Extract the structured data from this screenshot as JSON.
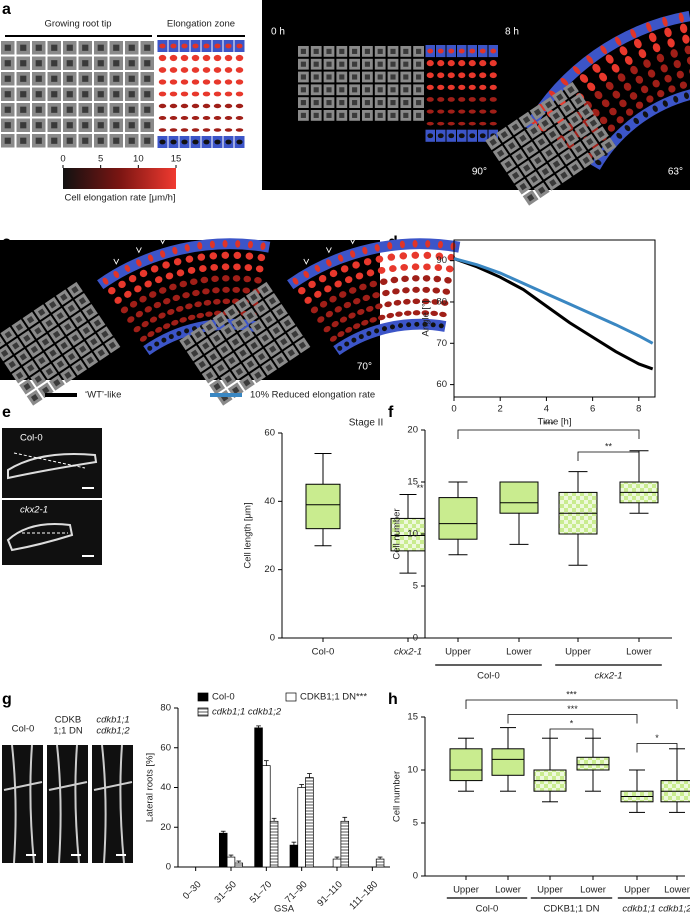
{
  "panel_labels": [
    "a",
    "b",
    "c",
    "d",
    "e",
    "f",
    "g",
    "h"
  ],
  "panel_a": {
    "headers": [
      "Growing root tip",
      "Elongation zone"
    ],
    "colorbar": {
      "lim": [
        0,
        15
      ],
      "ticks": [
        0,
        5,
        10,
        15
      ],
      "label": "Cell elongation rate [μm/h]"
    }
  },
  "panel_b": {
    "times": [
      "0 h",
      "8 h"
    ],
    "angles": [
      "90°",
      "63°"
    ]
  },
  "panel_c": {
    "angle": "70°"
  },
  "panel_e": {
    "images": [
      "Col-0",
      "ckx2-1"
    ]
  },
  "panel_g": {
    "images": [
      [
        "Col-0"
      ],
      [
        "CDKB",
        "1;1 DN"
      ],
      [
        "cdkb1;1",
        "cdkb1;2"
      ]
    ]
  },
  "chart_data": [
    {
      "type": "line",
      "xlabel": "Time [h]",
      "ylabel": "Angle [°]",
      "x": [
        0,
        1,
        2,
        3,
        4,
        5,
        6,
        7,
        8,
        8.6
      ],
      "series": [
        {
          "name": "‘WT’-like",
          "color": "#000000",
          "values": [
            90.5,
            88.5,
            86,
            83,
            79,
            75,
            71.5,
            68,
            65,
            63.8
          ]
        },
        {
          "name": "10% Reduced elongation rate",
          "color": "#3a87c2",
          "values": [
            90.5,
            89,
            87,
            84.5,
            82,
            79.5,
            77,
            74.5,
            71.8,
            70
          ]
        }
      ],
      "xlim": [
        0,
        8.7
      ],
      "ylim": [
        57,
        95
      ],
      "xticks": [
        0,
        2,
        4,
        6,
        8
      ],
      "yticks": [
        60,
        70,
        80,
        90
      ]
    },
    {
      "type": "box",
      "title": "Stage II",
      "ylabel": "Cell length [μm]",
      "categories": [
        "Col-0",
        "ckx2-1"
      ],
      "fills": [
        "solid",
        "checker"
      ],
      "color": "#c9ec8f",
      "boxes": [
        {
          "min": 27,
          "q1": 32,
          "median": 39,
          "q3": 45,
          "max": 54
        },
        {
          "min": 19,
          "q1": 25.5,
          "median": 30,
          "q3": 35,
          "max": 42
        }
      ],
      "annotations": [
        {
          "label": "**",
          "at": 1
        }
      ],
      "ylim": [
        0,
        60
      ],
      "yticks": [
        0,
        20,
        40,
        60
      ]
    },
    {
      "type": "box",
      "ylabel": "Cell number",
      "categories": [
        "Upper",
        "Lower",
        "Upper",
        "Lower"
      ],
      "group_labels": [
        "Col-0",
        "ckx2-1"
      ],
      "fills": [
        "solid",
        "solid",
        "checker",
        "checker"
      ],
      "color": "#c9ec8f",
      "boxes": [
        {
          "min": 8,
          "q1": 9.5,
          "median": 11,
          "q3": 13.5,
          "max": 15
        },
        {
          "min": 9,
          "q1": 12,
          "median": 13,
          "q3": 15,
          "max": 15
        },
        {
          "min": 7,
          "q1": 10,
          "median": 12,
          "q3": 14,
          "max": 16
        },
        {
          "min": 12,
          "q1": 13,
          "median": 14,
          "q3": 15,
          "max": 18
        }
      ],
      "significance": [
        {
          "label": "***",
          "between": [
            0,
            3
          ]
        },
        {
          "label": "**",
          "between": [
            2,
            3
          ]
        }
      ],
      "ylim": [
        0,
        20
      ],
      "yticks": [
        0,
        5,
        10,
        15,
        20
      ]
    },
    {
      "type": "bar",
      "xlabel": "GSA",
      "ylabel": "Lateral roots [%]",
      "categories": [
        "0–30",
        "31–50",
        "51–70",
        "71–90",
        "91–110",
        "111–180"
      ],
      "series": [
        {
          "name": "Col-0",
          "color": "#000000",
          "pattern": "solid",
          "values": [
            0,
            17,
            70,
            11,
            0,
            0
          ],
          "errors": [
            0,
            1,
            1,
            1.5,
            0,
            0
          ]
        },
        {
          "name": "CDKB1;1 DN***",
          "color": "#ffffff",
          "pattern": "solid",
          "values": [
            0,
            5,
            51,
            40,
            4,
            0
          ],
          "errors": [
            0,
            1,
            2.5,
            1.5,
            1,
            0
          ]
        },
        {
          "name": "cdkb1;1 cdkb1;2",
          "color": "#ffffff",
          "pattern": "hatch",
          "values": [
            0,
            2,
            23,
            45,
            23,
            4
          ],
          "errors": [
            0,
            1,
            1.5,
            2,
            2,
            1
          ]
        }
      ],
      "ylim": [
        0,
        80
      ],
      "yticks": [
        0,
        20,
        40,
        60,
        80
      ]
    },
    {
      "type": "box",
      "ylabel": "Cell number",
      "categories": [
        "Upper",
        "Lower",
        "Upper",
        "Lower",
        "Upper",
        "Lower"
      ],
      "group_labels": [
        "Col-0",
        "CDKB1;1 DN",
        "cdkb1;1 cdkb1;2"
      ],
      "fills": [
        "solid",
        "solid",
        "checker",
        "checker",
        "checker",
        "checker"
      ],
      "color": "#c9ec8f",
      "boxes": [
        {
          "min": 8,
          "q1": 9,
          "median": 10,
          "q3": 12,
          "max": 13
        },
        {
          "min": 8,
          "q1": 9.5,
          "median": 11,
          "q3": 12,
          "max": 14
        },
        {
          "min": 7,
          "q1": 8,
          "median": 9,
          "q3": 10,
          "max": 13
        },
        {
          "min": 8,
          "q1": 10,
          "median": 10.5,
          "q3": 11.2,
          "max": 13
        },
        {
          "min": 6,
          "q1": 7,
          "median": 7.5,
          "q3": 8,
          "max": 10
        },
        {
          "min": 6,
          "q1": 7,
          "median": 8,
          "q3": 9,
          "max": 12
        }
      ],
      "significance": [
        {
          "label": "***",
          "between": [
            0,
            5
          ]
        },
        {
          "label": "***",
          "between": [
            1,
            4
          ]
        },
        {
          "label": "*",
          "between": [
            2,
            3
          ]
        },
        {
          "label": "*",
          "between": [
            4,
            5
          ]
        }
      ],
      "ylim": [
        0,
        15
      ],
      "yticks": [
        0,
        5,
        10,
        15
      ]
    }
  ]
}
